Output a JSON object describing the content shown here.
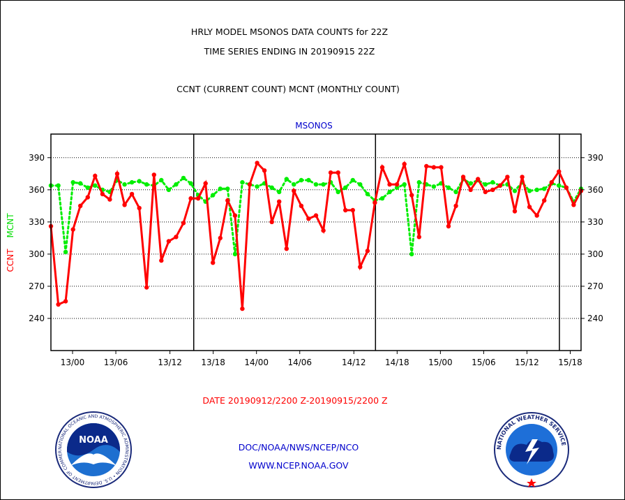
{
  "header": {
    "line1": "HRLY MODEL MSONOS DATA COUNTS for 22Z",
    "line2": "TIME SERIES ENDING IN 20190915 22Z",
    "line3": "CCNT (CURRENT COUNT) MCNT (MONTHLY COUNT)"
  },
  "footer": {
    "date_range": "DATE 20190912/2200 Z-20190915/2200 Z",
    "org": "DOC/NOAA/NWS/NCEP/NCO",
    "url": "WWW.NCEP.NOAA.GOV"
  },
  "logos": {
    "noaa_text": "NOAA",
    "noaa_ring": "NATIONAL OCEANIC AND ATMOSPHERIC ADMINISTRATION • U.S. DEPARTMENT OF COMMERCE •",
    "nws_ring": "NATIONAL WEATHER SERVICE"
  },
  "colors": {
    "ccnt": "#ff0000",
    "mcnt": "#00ee00",
    "title_blue": "#0000cc",
    "footer_red": "#ff0000"
  },
  "chart_data": {
    "type": "line",
    "title": "MSONOS",
    "ylabel_left": "CCNT",
    "ylabel_right": "MCNT",
    "ylim": [
      210,
      412
    ],
    "yticks": [
      240,
      270,
      300,
      330,
      360,
      390
    ],
    "grid": true,
    "x_range": [
      -2,
      47
    ],
    "x_tick_positions": [
      0,
      4,
      9,
      13,
      17,
      21,
      26,
      30,
      34,
      38,
      42,
      46
    ],
    "x_tick_labels": [
      "13/00",
      "13/06",
      "13/12",
      "13/18",
      "14/00",
      "14/06",
      "14/12",
      "14/18",
      "15/00",
      "15/06",
      "15/12",
      "15/18"
    ],
    "day_boundaries": [
      11.2,
      28.0,
      45.0
    ],
    "series": [
      {
        "name": "CCNT",
        "color": "#ff0000",
        "values": [
          326,
          253,
          256,
          323,
          345,
          353,
          373,
          356,
          351,
          375,
          346,
          356,
          343,
          269,
          374,
          294,
          312,
          316,
          329,
          352,
          352,
          366,
          292,
          315,
          350,
          336,
          249,
          365,
          385,
          378,
          330,
          349,
          305,
          359,
          345,
          333,
          336,
          322,
          376,
          376,
          341,
          341,
          288,
          303,
          348,
          381,
          365,
          365,
          384,
          355,
          316,
          382,
          381,
          381,
          326,
          345,
          372,
          360,
          370,
          358,
          360,
          364,
          372,
          340,
          372,
          344,
          336,
          350,
          367,
          377,
          362,
          346,
          359
        ]
      },
      {
        "name": "MCNT",
        "color": "#00ee00",
        "values": [
          364,
          364,
          302,
          367,
          366,
          362,
          364,
          360,
          358,
          369,
          365,
          367,
          368,
          365,
          364,
          369,
          360,
          365,
          371,
          366,
          355,
          349,
          355,
          361,
          361,
          300,
          367,
          365,
          363,
          366,
          362,
          358,
          370,
          365,
          369,
          369,
          365,
          365,
          367,
          358,
          362,
          369,
          365,
          356,
          350,
          352,
          358,
          362,
          365,
          300,
          367,
          365,
          363,
          366,
          362,
          358,
          370,
          366,
          369,
          365,
          367,
          364,
          365,
          359,
          367,
          359,
          360,
          361,
          366,
          364,
          362,
          349,
          361
        ]
      }
    ]
  }
}
